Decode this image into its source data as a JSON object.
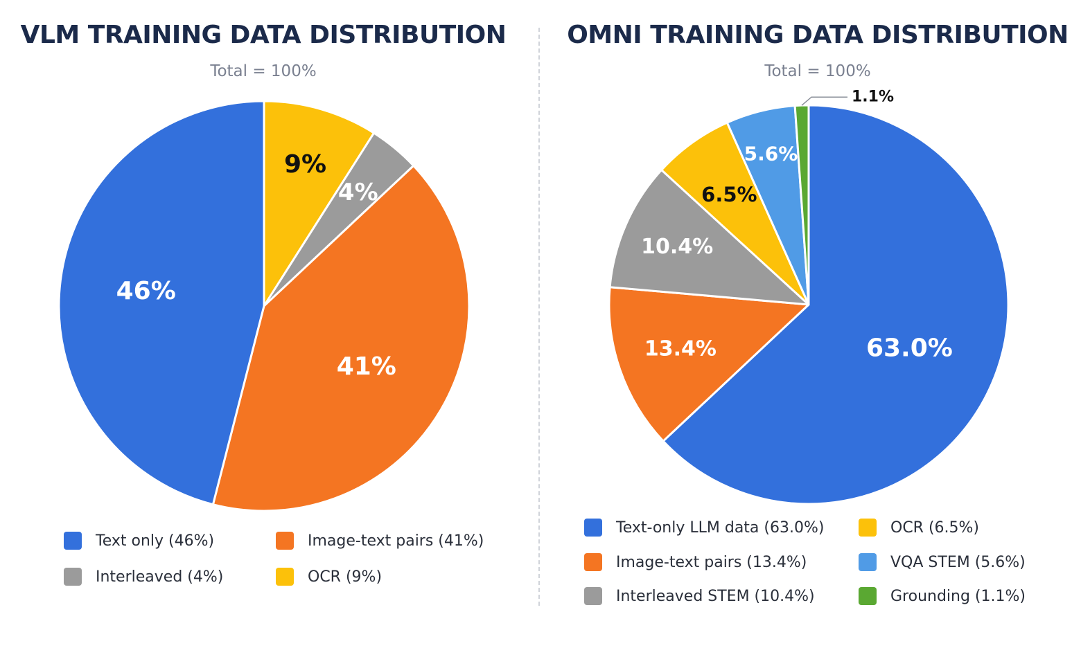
{
  "chart_data": [
    {
      "type": "pie",
      "title": "VLM TRAINING DATA DISTRIBUTION",
      "subtitle": "Total = 100%",
      "slices": [
        {
          "legend": "Text only (46%)",
          "label": "46%",
          "value": 46,
          "color": "#3370dc",
          "label_color": "#ffffff"
        },
        {
          "legend": "Image-text pairs (41%)",
          "label": "41%",
          "value": 41,
          "color": "#f47522",
          "label_color": "#ffffff"
        },
        {
          "legend": "Interleaved (4%)",
          "label": "4%",
          "value": 4,
          "color": "#9b9b9b",
          "label_color": "#ffffff"
        },
        {
          "legend": "OCR (9%)",
          "label": "9%",
          "value": 9,
          "color": "#fcc10a",
          "label_color": "#111111"
        }
      ],
      "legend_order": [
        0,
        1,
        2,
        3
      ],
      "legend_position": "bottom"
    },
    {
      "type": "pie",
      "title": "OMNI TRAINING DATA DISTRIBUTION",
      "subtitle": "Total = 100%",
      "slices": [
        {
          "legend": "Text-only LLM data (63.0%)",
          "label": "63.0%",
          "value": 63.0,
          "color": "#3370dc",
          "label_color": "#ffffff"
        },
        {
          "legend": "Image-text pairs (13.4%)",
          "label": "13.4%",
          "value": 13.4,
          "color": "#f47522",
          "label_color": "#ffffff"
        },
        {
          "legend": "Interleaved STEM (10.4%)",
          "label": "10.4%",
          "value": 10.4,
          "color": "#9b9b9b",
          "label_color": "#ffffff"
        },
        {
          "legend": "OCR (6.5%)",
          "label": "6.5%",
          "value": 6.5,
          "color": "#fcc10a",
          "label_color": "#111111"
        },
        {
          "legend": "VQA STEM (5.6%)",
          "label": "5.6%",
          "value": 5.6,
          "color": "#509be6",
          "label_color": "#ffffff"
        },
        {
          "legend": "Grounding (1.1%)",
          "label": "1.1%",
          "value": 1.1,
          "color": "#5aa832",
          "label_color": "#111111"
        }
      ],
      "legend_order": [
        0,
        3,
        1,
        4,
        2,
        5
      ],
      "legend_position": "bottom"
    }
  ]
}
